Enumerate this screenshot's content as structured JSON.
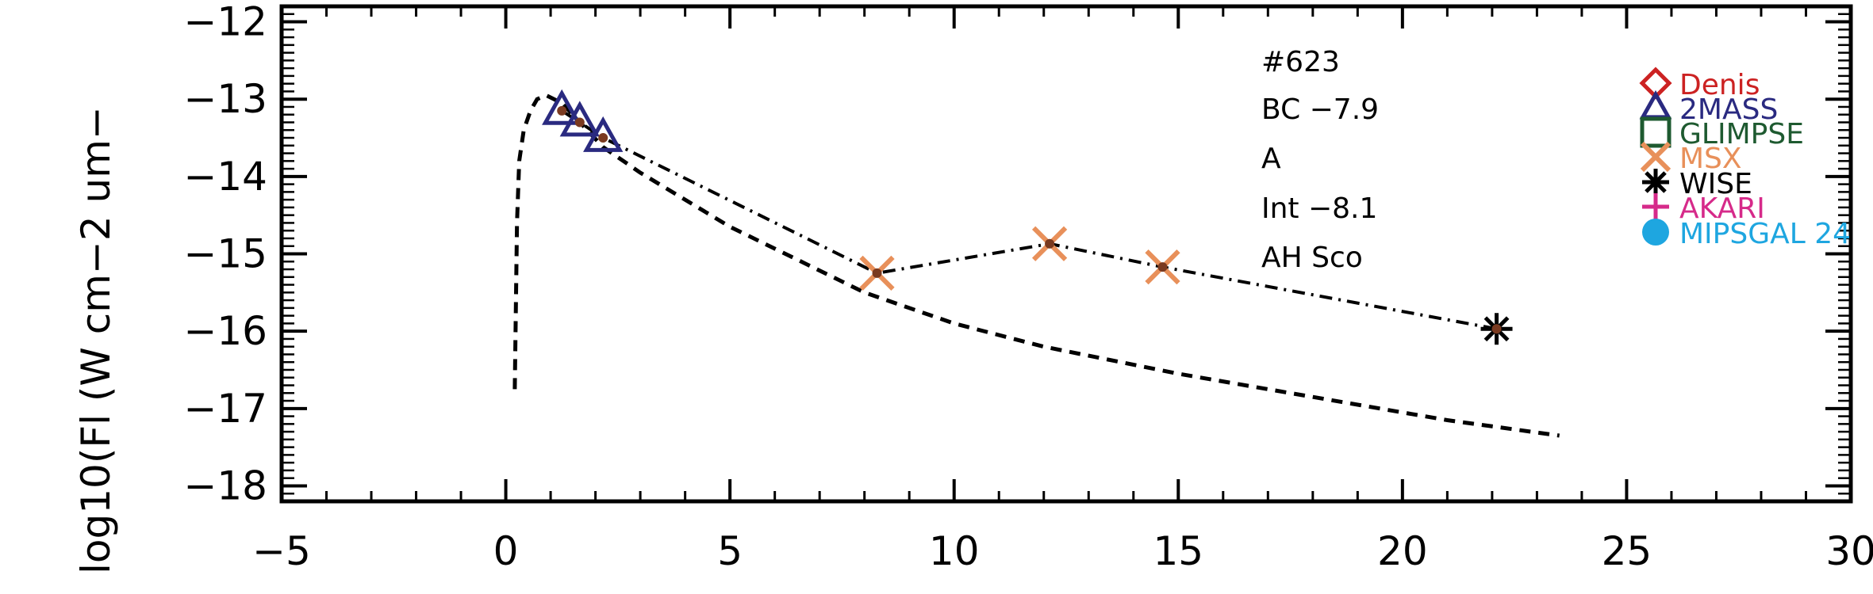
{
  "chart_data": {
    "type": "scatter",
    "xlabel": "",
    "ylabel": "log10(Fl (W cm−2 um−",
    "xlim": [
      -5,
      30
    ],
    "ylim": [
      -18.2,
      -11.8
    ],
    "x_ticks": [
      -5,
      0,
      5,
      10,
      15,
      20,
      25,
      30
    ],
    "x_tick_labels": [
      "−5",
      "0",
      "5",
      "10",
      "15",
      "20",
      "25",
      "30"
    ],
    "y_ticks": [
      -18,
      -17,
      -16,
      -15,
      -14,
      -13,
      -12
    ],
    "y_tick_labels": [
      "−18",
      "−17",
      "−16",
      "−15",
      "−14",
      "−13",
      "−12"
    ],
    "annotations": [
      "#623",
      "BC −7.9",
      "A",
      "Int −8.1",
      "AH Sco"
    ],
    "legend": [
      {
        "name": "Denis",
        "color": "#cc2222",
        "marker": "diamond-icon"
      },
      {
        "name": "2MASS",
        "color": "#2a2a80",
        "marker": "triangle-icon"
      },
      {
        "name": "GLIMPSE",
        "color": "#1e5a30",
        "marker": "square-icon"
      },
      {
        "name": "MSX",
        "color": "#e8905a",
        "marker": "x-icon"
      },
      {
        "name": "WISE",
        "color": "#000000",
        "marker": "asterisk-icon"
      },
      {
        "name": "AKARI",
        "color": "#d62a8a",
        "marker": "plus-icon"
      },
      {
        "name": "MIPSGAL 24",
        "color": "#1ea6e0",
        "marker": "circle-icon"
      }
    ],
    "series": [
      {
        "marker": "triangle",
        "color": "#2a2a80",
        "x": [
          1.25,
          1.65,
          2.17
        ],
        "y": [
          -13.15,
          -13.3,
          -13.5
        ]
      },
      {
        "marker": "x",
        "color": "#e8905a",
        "x": [
          8.28,
          12.13,
          14.65
        ],
        "y": [
          -15.25,
          -14.87,
          -15.17
        ]
      },
      {
        "marker": "asterisk",
        "color": "#000000",
        "x": [
          22.1
        ],
        "y": [
          -15.97
        ]
      }
    ],
    "dashdot_line": {
      "x": [
        1.25,
        1.65,
        2.17,
        8.28,
        12.13,
        14.65,
        22.1
      ],
      "y": [
        -13.15,
        -13.3,
        -13.5,
        -15.25,
        -14.87,
        -15.17,
        -15.97
      ]
    },
    "dashed_model": {
      "x": [
        0.2,
        0.25,
        0.3,
        0.4,
        0.55,
        0.7,
        0.9,
        1.25,
        2.17,
        3.0,
        5.0,
        8.0,
        10.0,
        12.0,
        15.0,
        18.0,
        21.0,
        23.5
      ],
      "y": [
        -16.75,
        -14.6,
        -13.8,
        -13.4,
        -13.15,
        -13.0,
        -12.95,
        -13.05,
        -13.62,
        -13.95,
        -14.65,
        -15.5,
        -15.9,
        -16.2,
        -16.55,
        -16.85,
        -17.15,
        -17.35
      ]
    }
  }
}
